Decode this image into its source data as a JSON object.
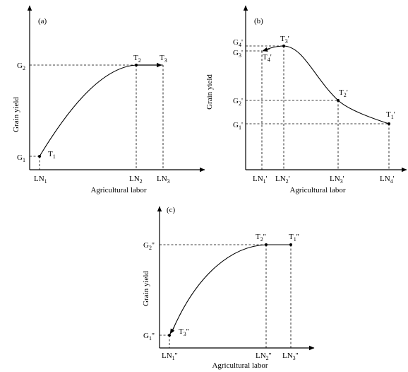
{
  "panels": [
    {
      "id": "a",
      "title": "(a)",
      "xlabel": "Agricultural labor",
      "ylabel": "Grain yield",
      "points": [
        {
          "base": "T",
          "sub": "1",
          "prime": ""
        },
        {
          "base": "T",
          "sub": "2",
          "prime": ""
        },
        {
          "base": "T",
          "sub": "3",
          "prime": ""
        }
      ],
      "x_ticks": [
        {
          "base": "LN",
          "sub": "1",
          "prime": ""
        },
        {
          "base": "LN",
          "sub": "2",
          "prime": ""
        },
        {
          "base": "LN",
          "sub": "3",
          "prime": ""
        }
      ],
      "y_ticks": [
        {
          "base": "G",
          "sub": "1",
          "prime": ""
        },
        {
          "base": "G",
          "sub": "2",
          "prime": ""
        }
      ]
    },
    {
      "id": "b",
      "title": "(b)",
      "xlabel": "Agricultural labor",
      "ylabel": "Grain yield",
      "points": [
        {
          "base": "T",
          "sub": "1",
          "prime": "'"
        },
        {
          "base": "T",
          "sub": "2",
          "prime": "'"
        },
        {
          "base": "T",
          "sub": "3",
          "prime": "'"
        },
        {
          "base": "T",
          "sub": "4",
          "prime": "'"
        }
      ],
      "x_ticks": [
        {
          "base": "LN",
          "sub": "1",
          "prime": "'"
        },
        {
          "base": "LN",
          "sub": "2",
          "prime": "'"
        },
        {
          "base": "LN",
          "sub": "3",
          "prime": "'"
        },
        {
          "base": "LN",
          "sub": "4",
          "prime": "'"
        }
      ],
      "y_ticks": [
        {
          "base": "G",
          "sub": "1",
          "prime": "'"
        },
        {
          "base": "G",
          "sub": "2",
          "prime": "'"
        },
        {
          "base": "G",
          "sub": "3",
          "prime": "'"
        },
        {
          "base": "G",
          "sub": "4",
          "prime": "'"
        }
      ]
    },
    {
      "id": "c",
      "title": "(c)",
      "xlabel": "Agricultural labor",
      "ylabel": "Grain yield",
      "points": [
        {
          "base": "T",
          "sub": "1",
          "prime": "''"
        },
        {
          "base": "T",
          "sub": "2",
          "prime": "''"
        },
        {
          "base": "T",
          "sub": "3",
          "prime": "''"
        }
      ],
      "x_ticks": [
        {
          "base": "LN",
          "sub": "1",
          "prime": "''"
        },
        {
          "base": "LN",
          "sub": "2",
          "prime": "''"
        },
        {
          "base": "LN",
          "sub": "3",
          "prime": "''"
        }
      ],
      "y_ticks": [
        {
          "base": "G",
          "sub": "1",
          "prime": "''"
        },
        {
          "base": "G",
          "sub": "2",
          "prime": "''"
        }
      ]
    }
  ]
}
